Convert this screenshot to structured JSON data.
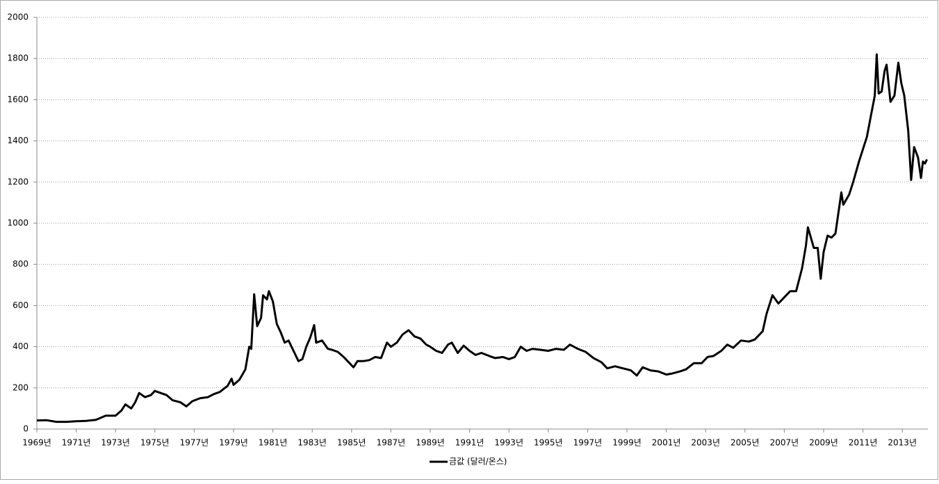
{
  "chart_data": {
    "type": "line",
    "x": [
      1969.0,
      1969.5,
      1970.0,
      1970.5,
      1971.0,
      1971.5,
      1972.0,
      1972.5,
      1973.0,
      1973.3,
      1973.5,
      1973.8,
      1974.0,
      1974.2,
      1974.5,
      1974.8,
      1975.0,
      1975.3,
      1975.6,
      1975.9,
      1976.3,
      1976.6,
      1976.9,
      1977.3,
      1977.7,
      1978.0,
      1978.3,
      1978.7,
      1978.9,
      1979.0,
      1979.3,
      1979.6,
      1979.8,
      1979.9,
      1980.05,
      1980.2,
      1980.4,
      1980.5,
      1980.7,
      1980.8,
      1981.0,
      1981.2,
      1981.4,
      1981.6,
      1981.8,
      1982.0,
      1982.3,
      1982.5,
      1982.7,
      1982.9,
      1983.1,
      1983.2,
      1983.5,
      1983.8,
      1984.0,
      1984.3,
      1984.6,
      1984.9,
      1985.1,
      1985.3,
      1985.6,
      1985.9,
      1986.2,
      1986.5,
      1986.8,
      1987.0,
      1987.3,
      1987.6,
      1987.9,
      1988.0,
      1988.2,
      1988.5,
      1988.8,
      1989.0,
      1989.3,
      1989.6,
      1989.9,
      1990.1,
      1990.4,
      1990.7,
      1991.0,
      1991.3,
      1991.6,
      1992.0,
      1992.3,
      1992.7,
      1993.0,
      1993.3,
      1993.6,
      1993.9,
      1994.2,
      1994.6,
      1995.0,
      1995.4,
      1995.8,
      1996.1,
      1996.5,
      1996.9,
      1997.3,
      1997.7,
      1998.0,
      1998.4,
      1998.8,
      1999.2,
      1999.5,
      1999.8,
      2000.2,
      2000.6,
      2001.0,
      2001.3,
      2001.7,
      2002.0,
      2002.4,
      2002.8,
      2003.1,
      2003.4,
      2003.8,
      2004.1,
      2004.4,
      2004.8,
      2005.2,
      2005.5,
      2005.9,
      2006.1,
      2006.4,
      2006.7,
      2007.0,
      2007.3,
      2007.6,
      2007.9,
      2008.1,
      2008.2,
      2008.5,
      2008.7,
      2008.85,
      2009.0,
      2009.2,
      2009.4,
      2009.6,
      2009.9,
      2010.0,
      2010.3,
      2010.5,
      2010.8,
      2011.0,
      2011.2,
      2011.4,
      2011.6,
      2011.7,
      2011.8,
      2011.95,
      2012.1,
      2012.2,
      2012.4,
      2012.6,
      2012.8,
      2012.95,
      2013.1,
      2013.3,
      2013.45,
      2013.6,
      2013.8,
      2013.95,
      2014.05,
      2014.15,
      2014.25
    ],
    "series": [
      {
        "name": "금값 (달러/온스)",
        "color": "#000000",
        "values": [
          42,
          43,
          35,
          35,
          38,
          40,
          45,
          65,
          65,
          90,
          120,
          100,
          130,
          175,
          155,
          165,
          185,
          175,
          165,
          140,
          130,
          110,
          135,
          150,
          155,
          170,
          180,
          210,
          245,
          215,
          240,
          290,
          400,
          390,
          655,
          500,
          540,
          650,
          630,
          670,
          620,
          510,
          470,
          420,
          430,
          390,
          330,
          340,
          400,
          445,
          505,
          420,
          430,
          390,
          385,
          375,
          350,
          320,
          300,
          330,
          330,
          335,
          350,
          345,
          420,
          400,
          420,
          460,
          480,
          470,
          450,
          440,
          410,
          400,
          380,
          370,
          410,
          420,
          370,
          405,
          380,
          360,
          370,
          355,
          345,
          350,
          340,
          350,
          400,
          380,
          390,
          385,
          380,
          390,
          385,
          410,
          390,
          375,
          345,
          325,
          295,
          305,
          295,
          285,
          260,
          300,
          285,
          280,
          265,
          270,
          280,
          290,
          320,
          320,
          350,
          355,
          380,
          410,
          395,
          430,
          425,
          435,
          475,
          560,
          650,
          610,
          640,
          670,
          670,
          780,
          890,
          980,
          880,
          880,
          730,
          860,
          940,
          930,
          950,
          1150,
          1090,
          1140,
          1200,
          1300,
          1360,
          1420,
          1520,
          1620,
          1820,
          1630,
          1640,
          1740,
          1770,
          1590,
          1620,
          1780,
          1680,
          1620,
          1450,
          1210,
          1370,
          1320,
          1220,
          1300,
          1290,
          1310
        ]
      }
    ],
    "xlim": [
      1969,
      2014.3
    ],
    "xticks": [
      {
        "value": 1969,
        "label": "1969년"
      },
      {
        "value": 1971,
        "label": "1971년"
      },
      {
        "value": 1973,
        "label": "1973년"
      },
      {
        "value": 1975,
        "label": "1975년"
      },
      {
        "value": 1977,
        "label": "1977년"
      },
      {
        "value": 1979,
        "label": "1979년"
      },
      {
        "value": 1981,
        "label": "1981년"
      },
      {
        "value": 1983,
        "label": "1983년"
      },
      {
        "value": 1985,
        "label": "1985년"
      },
      {
        "value": 1987,
        "label": "1987년"
      },
      {
        "value": 1989,
        "label": "1989년"
      },
      {
        "value": 1991,
        "label": "1991년"
      },
      {
        "value": 1993,
        "label": "1993년"
      },
      {
        "value": 1995,
        "label": "1995년"
      },
      {
        "value": 1997,
        "label": "1997년"
      },
      {
        "value": 1999,
        "label": "1999년"
      },
      {
        "value": 2001,
        "label": "2001년"
      },
      {
        "value": 2003,
        "label": "2003년"
      },
      {
        "value": 2005,
        "label": "2005년"
      },
      {
        "value": 2007,
        "label": "2007년"
      },
      {
        "value": 2009,
        "label": "2009년"
      },
      {
        "value": 2011,
        "label": "2011년"
      },
      {
        "value": 2013,
        "label": "2013년"
      }
    ],
    "ylim": [
      0,
      2000
    ],
    "yticks": [
      0,
      200,
      400,
      600,
      800,
      1000,
      1200,
      1400,
      1600,
      1800,
      2000
    ],
    "grid": true,
    "legend": "bottom"
  }
}
